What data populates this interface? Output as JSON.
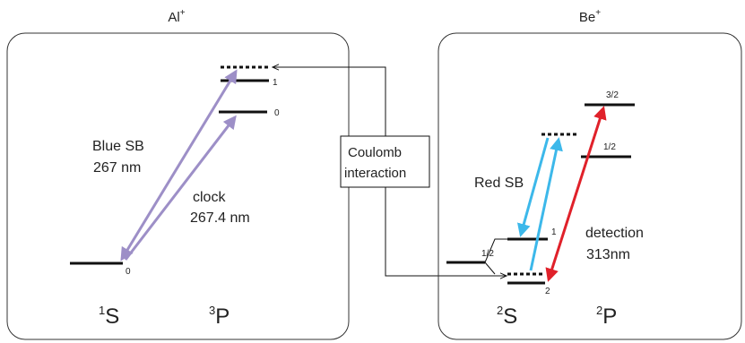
{
  "panels": {
    "al": {
      "title": "Al",
      "title_sup": "+",
      "levels": {
        "ground": "0",
        "upper": "1",
        "clock_state": "0"
      },
      "term_left": {
        "sup": "1",
        "base": "S"
      },
      "term_right": {
        "sup": "3",
        "base": "P"
      },
      "blue_sb": {
        "line1": "Blue SB",
        "line2": "267 nm"
      },
      "clock": {
        "line1": "clock",
        "line2": "267.4 nm"
      }
    },
    "be": {
      "title": "Be",
      "title_sup": "+",
      "levels": {
        "p32": "3/2",
        "p12": "1/2",
        "s12": "1/2",
        "s_1": "1",
        "s_2": "2"
      },
      "term_left": {
        "sup": "2",
        "base": "S"
      },
      "term_right": {
        "sup": "2",
        "base": "P"
      },
      "red_sb": "Red SB",
      "detection": {
        "line1": "detection",
        "line2": "313nm"
      }
    }
  },
  "coulomb": {
    "line1": "Coulomb",
    "line2": "interaction"
  },
  "colors": {
    "panel_border": "#333333",
    "level": "#111111",
    "purple": "#9d8fc7",
    "cyan": "#3cb8ea",
    "red": "#e0212a"
  }
}
